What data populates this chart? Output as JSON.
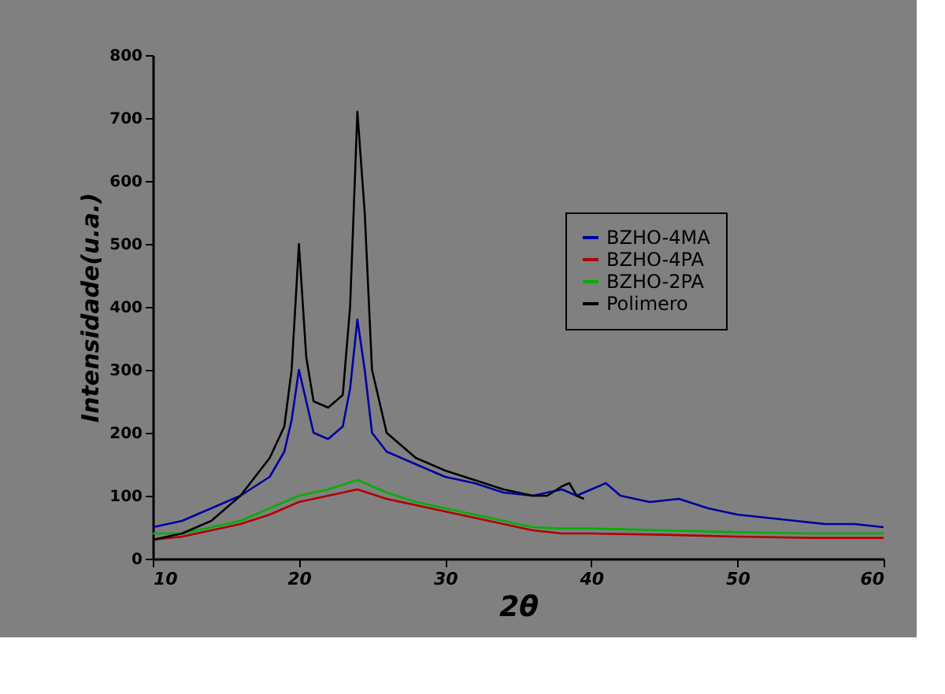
{
  "chart_data": {
    "type": "line",
    "xlabel": "2θ",
    "ylabel": "Intensidade(u.a.)",
    "xlim": [
      10,
      60
    ],
    "ylim": [
      0,
      800
    ],
    "xticks": [
      10,
      20,
      30,
      40,
      50,
      60
    ],
    "yticks": [
      0,
      100,
      200,
      300,
      400,
      500,
      600,
      700,
      800
    ],
    "grid": false,
    "legend": "top right",
    "line_style": "solid",
    "marker": "none",
    "series": [
      {
        "name": "BZHO-4MA",
        "color": "#0000a0",
        "x": [
          10,
          12,
          14,
          16,
          18,
          19,
          19.5,
          20,
          20.5,
          21,
          22,
          23,
          23.5,
          24,
          24.5,
          25,
          26,
          28,
          30,
          32,
          34,
          36,
          38,
          39,
          40,
          41,
          42,
          44,
          46,
          48,
          50,
          52,
          54,
          56,
          58,
          60
        ],
        "values": [
          50,
          60,
          80,
          100,
          130,
          170,
          220,
          300,
          250,
          200,
          190,
          210,
          270,
          380,
          300,
          200,
          170,
          150,
          130,
          120,
          105,
          100,
          110,
          100,
          110,
          120,
          100,
          90,
          95,
          80,
          70,
          65,
          60,
          55,
          55,
          50
        ]
      },
      {
        "name": "BZHO-4PA",
        "color": "#b00000",
        "x": [
          10,
          12,
          14,
          16,
          18,
          20,
          22,
          24,
          26,
          28,
          30,
          32,
          34,
          36,
          38,
          40,
          45,
          50,
          55,
          60
        ],
        "values": [
          30,
          35,
          45,
          55,
          70,
          90,
          100,
          110,
          95,
          85,
          75,
          65,
          55,
          45,
          40,
          40,
          38,
          35,
          33,
          33
        ]
      },
      {
        "name": "BZHO-2PA",
        "color": "#00b000",
        "x": [
          10,
          12,
          14,
          16,
          18,
          20,
          22,
          24,
          26,
          28,
          30,
          32,
          34,
          36,
          38,
          40,
          45,
          50,
          55,
          60
        ],
        "values": [
          40,
          40,
          50,
          60,
          80,
          100,
          110,
          125,
          105,
          90,
          80,
          70,
          60,
          50,
          48,
          48,
          45,
          42,
          40,
          40
        ]
      },
      {
        "name": "Polimero",
        "color": "#000000",
        "x": [
          10,
          12,
          14,
          16,
          17,
          18,
          19,
          19.5,
          20,
          20.5,
          21,
          22,
          23,
          23.5,
          24,
          24.5,
          25,
          26,
          28,
          30,
          32,
          34,
          36,
          37,
          38,
          38.5,
          39,
          39.5
        ],
        "values": [
          30,
          40,
          60,
          100,
          130,
          160,
          210,
          300,
          500,
          320,
          250,
          240,
          260,
          400,
          710,
          550,
          300,
          200,
          160,
          140,
          125,
          110,
          100,
          100,
          115,
          120,
          100,
          95
        ]
      }
    ]
  }
}
